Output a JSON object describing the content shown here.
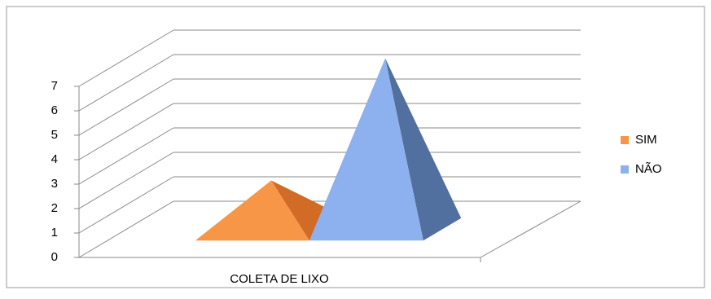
{
  "chart_data": {
    "type": "pyramid",
    "categories": [
      "COLETA DE LIXO"
    ],
    "series": [
      {
        "name": "SIM",
        "color": "#f79646",
        "side_color": "#d16b25",
        "values": [
          2
        ]
      },
      {
        "name": "NÃO",
        "color": "#8db0ee",
        "side_color": "#52709f",
        "values": [
          7
        ]
      }
    ],
    "ylim": [
      0,
      7
    ],
    "yticks": [
      0,
      1,
      2,
      3,
      4,
      5,
      6,
      7
    ],
    "grid": true,
    "legend": "right"
  }
}
